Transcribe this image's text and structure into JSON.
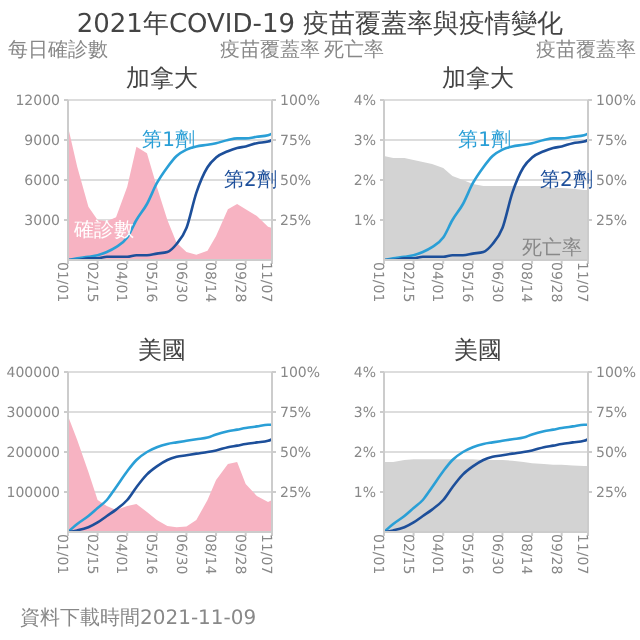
{
  "chart_data": [
    {
      "type": "other",
      "title": "2021年COVID-19 疫苗覆蓋率與疫情變化",
      "annotations": [
        "資料下載時間2021-11-09"
      ]
    },
    {
      "type": "line",
      "title": "加拿大",
      "ylabel": "每日確診數",
      "y2label": "疫苗覆蓋率",
      "x": [
        "2021-01-01",
        "2021-01-15",
        "2021-02-01",
        "2021-02-15",
        "2021-03-01",
        "2021-03-15",
        "2021-04-01",
        "2021-04-15",
        "2021-05-01",
        "2021-05-16",
        "2021-06-01",
        "2021-06-15",
        "2021-06-30",
        "2021-07-15",
        "2021-08-01",
        "2021-08-14",
        "2021-09-01",
        "2021-09-15",
        "2021-09-28",
        "2021-10-15",
        "2021-11-01",
        "2021-11-07"
      ],
      "xlim": [
        "2021-01-01",
        "2021-11-07"
      ],
      "xticks": [
        {
          "value": "2021-01-01",
          "label": "01/01"
        },
        {
          "value": "2021-02-15",
          "label": "02/15"
        },
        {
          "value": "2021-04-01",
          "label": "04/01"
        },
        {
          "value": "2021-05-16",
          "label": "05/16"
        },
        {
          "value": "2021-06-30",
          "label": "06/30"
        },
        {
          "value": "2021-08-14",
          "label": "08/14"
        },
        {
          "value": "2021-09-28",
          "label": "09/28"
        },
        {
          "value": "2021-11-07",
          "label": "11/07"
        }
      ],
      "ylim": [
        0,
        12000
      ],
      "yticks": [
        3000,
        6000,
        9000,
        12000
      ],
      "y2lim": [
        0,
        100
      ],
      "y2ticks": [
        {
          "value": 25,
          "label": "25%"
        },
        {
          "value": 50,
          "label": "50%"
        },
        {
          "value": 75,
          "label": "75%"
        },
        {
          "value": 100,
          "label": "100%"
        }
      ],
      "grid": "y",
      "series": [
        {
          "type": "area",
          "name": "確診數",
          "color": "#f7b3c2",
          "values": [
            10000,
            7000,
            4000,
            3000,
            2900,
            3200,
            5500,
            8500,
            8000,
            5500,
            3000,
            1300,
            600,
            400,
            700,
            1800,
            3800,
            4200,
            3800,
            3300,
            2500,
            2400
          ]
        },
        {
          "name": "第1劑",
          "axis": "y2",
          "color": "#2a9fd6",
          "values": [
            0,
            1,
            2,
            3,
            5,
            8,
            14,
            25,
            35,
            48,
            58,
            65,
            69,
            71,
            72,
            73,
            75,
            76,
            76,
            77,
            78,
            79
          ]
        },
        {
          "name": "第2劑",
          "axis": "y2",
          "color": "#1d4f9a",
          "values": [
            0,
            0,
            1,
            1,
            2,
            2,
            2,
            3,
            3,
            4,
            5,
            10,
            20,
            42,
            58,
            64,
            68,
            70,
            71,
            73,
            74,
            75
          ]
        }
      ]
    },
    {
      "type": "line",
      "title": "加拿大",
      "ylabel": "死亡率",
      "y2label": "疫苗覆蓋率",
      "x": [
        "2021-01-01",
        "2021-01-15",
        "2021-02-01",
        "2021-02-15",
        "2021-03-01",
        "2021-03-15",
        "2021-04-01",
        "2021-04-15",
        "2021-05-01",
        "2021-05-16",
        "2021-06-01",
        "2021-06-15",
        "2021-06-30",
        "2021-07-15",
        "2021-08-01",
        "2021-08-14",
        "2021-09-01",
        "2021-09-15",
        "2021-09-28",
        "2021-10-15",
        "2021-11-01",
        "2021-11-07"
      ],
      "xlim": [
        "2021-01-01",
        "2021-11-07"
      ],
      "xticks": [
        {
          "value": "2021-01-01",
          "label": "01/01"
        },
        {
          "value": "2021-02-15",
          "label": "02/15"
        },
        {
          "value": "2021-04-01",
          "label": "04/01"
        },
        {
          "value": "2021-05-16",
          "label": "05/16"
        },
        {
          "value": "2021-06-30",
          "label": "06/30"
        },
        {
          "value": "2021-08-14",
          "label": "08/14"
        },
        {
          "value": "2021-09-28",
          "label": "09/28"
        },
        {
          "value": "2021-11-07",
          "label": "11/07"
        }
      ],
      "ylim": [
        0,
        4
      ],
      "yticks": [
        {
          "value": 1,
          "label": "1%"
        },
        {
          "value": 2,
          "label": "2%"
        },
        {
          "value": 3,
          "label": "3%"
        },
        {
          "value": 4,
          "label": "4%"
        }
      ],
      "y2lim": [
        0,
        100
      ],
      "y2ticks": [
        {
          "value": 25,
          "label": "25%"
        },
        {
          "value": 50,
          "label": "50%"
        },
        {
          "value": 75,
          "label": "75%"
        },
        {
          "value": 100,
          "label": "100%"
        }
      ],
      "grid": "y",
      "series": [
        {
          "type": "area",
          "name": "死亡率",
          "color": "#d3d3d3",
          "values": [
            2.6,
            2.55,
            2.55,
            2.5,
            2.45,
            2.4,
            2.3,
            2.1,
            2.0,
            1.9,
            1.85,
            1.85,
            1.85,
            1.85,
            1.85,
            1.85,
            1.85,
            1.8,
            1.8,
            1.78,
            1.75,
            1.75
          ]
        },
        {
          "name": "第1劑",
          "axis": "y2",
          "color": "#2a9fd6",
          "values": [
            0,
            1,
            2,
            3,
            5,
            8,
            14,
            25,
            35,
            48,
            58,
            65,
            69,
            71,
            72,
            73,
            75,
            76,
            76,
            77,
            78,
            79
          ]
        },
        {
          "name": "第2劑",
          "axis": "y2",
          "color": "#1d4f9a",
          "values": [
            0,
            0,
            1,
            1,
            2,
            2,
            2,
            3,
            3,
            4,
            5,
            10,
            20,
            42,
            58,
            64,
            68,
            70,
            71,
            73,
            74,
            75
          ]
        }
      ]
    },
    {
      "type": "line",
      "title": "美國",
      "x": [
        "2021-01-01",
        "2021-01-15",
        "2021-02-01",
        "2021-02-15",
        "2021-03-01",
        "2021-03-15",
        "2021-04-01",
        "2021-04-15",
        "2021-05-01",
        "2021-05-16",
        "2021-06-01",
        "2021-06-15",
        "2021-06-30",
        "2021-07-15",
        "2021-08-01",
        "2021-08-14",
        "2021-09-01",
        "2021-09-15",
        "2021-09-28",
        "2021-10-15",
        "2021-11-01",
        "2021-11-07"
      ],
      "xlim": [
        "2021-01-01",
        "2021-11-07"
      ],
      "xticks": [
        {
          "value": "2021-01-01",
          "label": "01/01"
        },
        {
          "value": "2021-02-15",
          "label": "02/15"
        },
        {
          "value": "2021-04-01",
          "label": "04/01"
        },
        {
          "value": "2021-05-16",
          "label": "05/16"
        },
        {
          "value": "2021-06-30",
          "label": "06/30"
        },
        {
          "value": "2021-08-14",
          "label": "08/14"
        },
        {
          "value": "2021-09-28",
          "label": "09/28"
        },
        {
          "value": "2021-11-07",
          "label": "11/07"
        }
      ],
      "ylim": [
        0,
        400000
      ],
      "yticks": [
        100000,
        200000,
        300000,
        400000
      ],
      "y2lim": [
        0,
        100
      ],
      "y2ticks": [
        {
          "value": 25,
          "label": "25%"
        },
        {
          "value": 50,
          "label": "50%"
        },
        {
          "value": 75,
          "label": "75%"
        },
        {
          "value": 100,
          "label": "100%"
        }
      ],
      "grid": "y",
      "series": [
        {
          "type": "area",
          "color": "#f7b3c2",
          "values": [
            290000,
            230000,
            150000,
            80000,
            65000,
            55000,
            65000,
            70000,
            50000,
            30000,
            15000,
            12000,
            14000,
            30000,
            80000,
            130000,
            170000,
            175000,
            120000,
            90000,
            75000,
            80000
          ]
        },
        {
          "axis": "y2",
          "color": "#2a9fd6",
          "values": [
            0,
            5,
            10,
            15,
            20,
            28,
            38,
            45,
            50,
            53,
            55,
            56,
            57,
            58,
            59,
            61,
            63,
            64,
            65,
            66,
            67,
            67
          ]
        },
        {
          "axis": "y2",
          "color": "#1d4f9a",
          "values": [
            0,
            1,
            3,
            6,
            10,
            14,
            20,
            28,
            36,
            41,
            45,
            47,
            48,
            49,
            50,
            51,
            53,
            54,
            55,
            56,
            57,
            58
          ]
        }
      ]
    },
    {
      "type": "line",
      "title": "美國",
      "x": [
        "2021-01-01",
        "2021-01-15",
        "2021-02-01",
        "2021-02-15",
        "2021-03-01",
        "2021-03-15",
        "2021-04-01",
        "2021-04-15",
        "2021-05-01",
        "2021-05-16",
        "2021-06-01",
        "2021-06-15",
        "2021-06-30",
        "2021-07-15",
        "2021-08-01",
        "2021-08-14",
        "2021-09-01",
        "2021-09-15",
        "2021-09-28",
        "2021-10-15",
        "2021-11-01",
        "2021-11-07"
      ],
      "xlim": [
        "2021-01-01",
        "2021-11-07"
      ],
      "xticks": [
        {
          "value": "2021-01-01",
          "label": "01/01"
        },
        {
          "value": "2021-02-15",
          "label": "02/15"
        },
        {
          "value": "2021-04-01",
          "label": "04/01"
        },
        {
          "value": "2021-05-16",
          "label": "05/16"
        },
        {
          "value": "2021-06-30",
          "label": "06/30"
        },
        {
          "value": "2021-08-14",
          "label": "08/14"
        },
        {
          "value": "2021-09-28",
          "label": "09/28"
        },
        {
          "value": "2021-11-07",
          "label": "11/07"
        }
      ],
      "ylim": [
        0,
        4
      ],
      "yticks": [
        {
          "value": 1,
          "label": "1%"
        },
        {
          "value": 2,
          "label": "2%"
        },
        {
          "value": 3,
          "label": "3%"
        },
        {
          "value": 4,
          "label": "4%"
        }
      ],
      "y2lim": [
        0,
        100
      ],
      "y2ticks": [
        {
          "value": 25,
          "label": "25%"
        },
        {
          "value": 50,
          "label": "50%"
        },
        {
          "value": 75,
          "label": "75%"
        },
        {
          "value": 100,
          "label": "100%"
        }
      ],
      "grid": "y",
      "series": [
        {
          "type": "area",
          "color": "#d3d3d3",
          "values": [
            1.75,
            1.75,
            1.8,
            1.82,
            1.82,
            1.82,
            1.82,
            1.82,
            1.82,
            1.82,
            1.8,
            1.8,
            1.8,
            1.78,
            1.75,
            1.72,
            1.7,
            1.68,
            1.68,
            1.66,
            1.65,
            1.65
          ]
        },
        {
          "axis": "y2",
          "color": "#2a9fd6",
          "values": [
            0,
            5,
            10,
            15,
            20,
            28,
            38,
            45,
            50,
            53,
            55,
            56,
            57,
            58,
            59,
            61,
            63,
            64,
            65,
            66,
            67,
            67
          ]
        },
        {
          "axis": "y2",
          "color": "#1d4f9a",
          "values": [
            0,
            1,
            3,
            6,
            10,
            14,
            20,
            28,
            36,
            41,
            45,
            47,
            48,
            49,
            50,
            51,
            53,
            54,
            55,
            56,
            57,
            58
          ]
        }
      ]
    }
  ]
}
